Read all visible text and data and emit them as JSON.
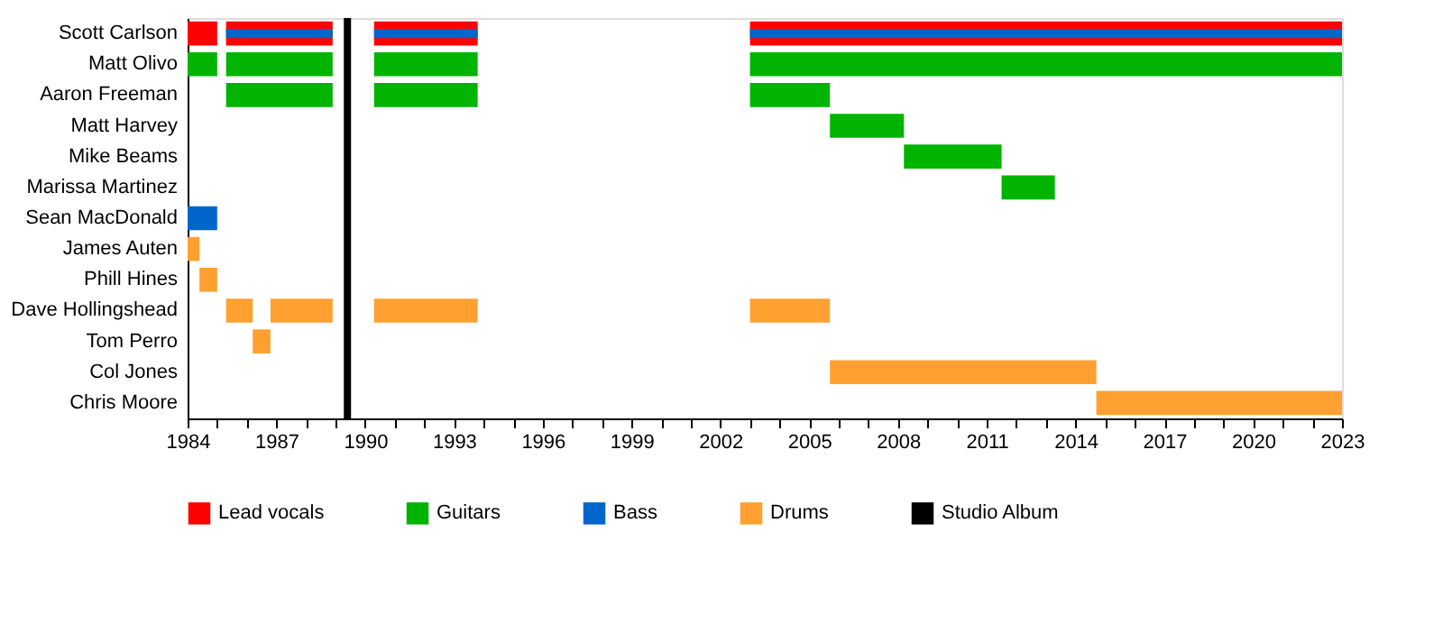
{
  "chart_data": {
    "type": "bar",
    "orientation": "horizontal",
    "categories": [
      "Scott Carlson",
      "Matt Olivo",
      "Aaron Freeman",
      "Matt Harvey",
      "Mike Beams",
      "Marissa Martinez",
      "Sean MacDonald",
      "James Auten",
      "Phill Hines",
      "Dave Hollingshead",
      "Tom Perro",
      "Col Jones",
      "Chris Moore"
    ],
    "series": [
      {
        "name": "Lead vocals",
        "color": "#ff0000",
        "base": [
          1984,
          null,
          null,
          null,
          null,
          null,
          null,
          null,
          null,
          null,
          null,
          null,
          null
        ],
        "values": [
          1.0,
          null,
          null,
          null,
          null,
          null,
          null,
          null,
          null,
          null,
          null,
          null,
          null
        ]
      },
      {
        "color": "#ff0000",
        "base": [
          1985.3,
          null,
          null,
          null,
          null,
          null,
          null,
          null,
          null,
          null,
          null,
          null,
          null
        ],
        "values": [
          3.6,
          null,
          null,
          null,
          null,
          null,
          null,
          null,
          null,
          null,
          null,
          null,
          null
        ]
      },
      {
        "color": "#ff0000",
        "base": [
          1990.3,
          null,
          null,
          null,
          null,
          null,
          null,
          null,
          null,
          null,
          null,
          null,
          null
        ],
        "values": [
          3.5,
          null,
          null,
          null,
          null,
          null,
          null,
          null,
          null,
          null,
          null,
          null,
          null
        ]
      },
      {
        "color": "#ff0000",
        "base": [
          2003,
          null,
          null,
          null,
          null,
          null,
          null,
          null,
          null,
          null,
          null,
          null,
          null
        ],
        "values": [
          20.0,
          null,
          null,
          null,
          null,
          null,
          null,
          null,
          null,
          null,
          null,
          null,
          null
        ]
      },
      {
        "name": "Guitars",
        "color": "#00b400",
        "base": [
          null,
          1984,
          1985.3,
          2005.7,
          2008.2,
          2011.5,
          null,
          null,
          null,
          null,
          null,
          null,
          null
        ],
        "values": [
          null,
          1.0,
          3.6,
          2.5,
          3.3,
          1.8,
          null,
          null,
          null,
          null,
          null,
          null,
          null
        ]
      },
      {
        "color": "#00b400",
        "base": [
          null,
          1985.3,
          1990.3,
          null,
          null,
          null,
          null,
          null,
          null,
          null,
          null,
          null,
          null
        ],
        "values": [
          null,
          3.6,
          3.5,
          null,
          null,
          null,
          null,
          null,
          null,
          null,
          null,
          null,
          null
        ]
      },
      {
        "color": "#00b400",
        "base": [
          null,
          1990.3,
          2003,
          null,
          null,
          null,
          null,
          null,
          null,
          null,
          null,
          null,
          null
        ],
        "values": [
          null,
          3.5,
          2.7,
          null,
          null,
          null,
          null,
          null,
          null,
          null,
          null,
          null,
          null
        ]
      },
      {
        "color": "#00b400",
        "base": [
          null,
          2003,
          null,
          null,
          null,
          null,
          null,
          null,
          null,
          null,
          null,
          null,
          null
        ],
        "values": [
          null,
          20.0,
          null,
          null,
          null,
          null,
          null,
          null,
          null,
          null,
          null,
          null,
          null
        ]
      },
      {
        "name": "Bass",
        "color": "#0066cc",
        "base": [
          1985.3,
          null,
          null,
          null,
          null,
          null,
          1984,
          null,
          null,
          null,
          null,
          null,
          null
        ],
        "values": [
          3.6,
          null,
          null,
          null,
          null,
          null,
          1.0,
          null,
          null,
          null,
          null,
          null,
          null
        ]
      },
      {
        "color": "#0066cc",
        "base": [
          1990.3,
          null,
          null,
          null,
          null,
          null,
          null,
          null,
          null,
          null,
          null,
          null,
          null
        ],
        "values": [
          3.5,
          null,
          null,
          null,
          null,
          null,
          null,
          null,
          null,
          null,
          null,
          null,
          null
        ]
      },
      {
        "color": "#0066cc",
        "base": [
          2003,
          null,
          null,
          null,
          null,
          null,
          null,
          null,
          null,
          null,
          null,
          null,
          null
        ],
        "values": [
          20.0,
          null,
          null,
          null,
          null,
          null,
          null,
          null,
          null,
          null,
          null,
          null,
          null
        ]
      },
      {
        "name": "Drums",
        "color": "#ffa030",
        "base": [
          null,
          null,
          null,
          null,
          null,
          null,
          null,
          1984,
          1984.4,
          1985.3,
          1986.2,
          2005.7,
          2014.7
        ],
        "values": [
          null,
          null,
          null,
          null,
          null,
          null,
          null,
          0.4,
          0.6,
          0.9,
          0.6,
          9.0,
          8.3
        ]
      },
      {
        "color": "#ffa030",
        "base": [
          null,
          null,
          null,
          null,
          null,
          null,
          null,
          null,
          null,
          1986.8,
          null,
          null,
          null
        ],
        "values": [
          null,
          null,
          null,
          null,
          null,
          null,
          null,
          null,
          null,
          2.1,
          null,
          null,
          null
        ]
      },
      {
        "color": "#ffa030",
        "base": [
          null,
          null,
          null,
          null,
          null,
          null,
          null,
          null,
          null,
          1990.3,
          null,
          null,
          null
        ],
        "values": [
          null,
          null,
          null,
          null,
          null,
          null,
          null,
          null,
          null,
          3.5,
          null,
          null,
          null
        ]
      },
      {
        "color": "#ffa030",
        "base": [
          null,
          null,
          null,
          null,
          null,
          null,
          null,
          null,
          null,
          2003,
          null,
          null,
          null
        ],
        "values": [
          null,
          null,
          null,
          null,
          null,
          null,
          null,
          null,
          null,
          2.7,
          null,
          null,
          null
        ]
      }
    ],
    "ref_lines": [
      {
        "axis": "x",
        "value": 1989.4,
        "label": "Studio Album",
        "color": "#000000"
      }
    ],
    "xlim": [
      1984,
      2023
    ],
    "xticks": [
      1984,
      {
        "value": 1985,
        "label": null
      },
      {
        "value": 1986,
        "label": null
      },
      1987,
      {
        "value": 1988,
        "label": null
      },
      {
        "value": 1989,
        "label": null
      },
      1990,
      {
        "value": 1991,
        "label": null
      },
      {
        "value": 1992,
        "label": null
      },
      1993,
      {
        "value": 1994,
        "label": null
      },
      {
        "value": 1995,
        "label": null
      },
      1996,
      {
        "value": 1997,
        "label": null
      },
      {
        "value": 1998,
        "label": null
      },
      1999,
      {
        "value": 2000,
        "label": null
      },
      {
        "value": 2001,
        "label": null
      },
      2002,
      {
        "value": 2003,
        "label": null
      },
      {
        "value": 2004,
        "label": null
      },
      2005,
      {
        "value": 2006,
        "label": null
      },
      {
        "value": 2007,
        "label": null
      },
      2008,
      {
        "value": 2009,
        "label": null
      },
      {
        "value": 2010,
        "label": null
      },
      2011,
      {
        "value": 2012,
        "label": null
      },
      {
        "value": 2013,
        "label": null
      },
      2014,
      {
        "value": 2015,
        "label": null
      },
      {
        "value": 2016,
        "label": null
      },
      2017,
      {
        "value": 2018,
        "label": null
      },
      {
        "value": 2019,
        "label": null
      },
      2020,
      {
        "value": 2021,
        "label": null
      },
      {
        "value": 2022,
        "label": null
      },
      2023
    ],
    "grid": false,
    "legend": "bottom"
  }
}
